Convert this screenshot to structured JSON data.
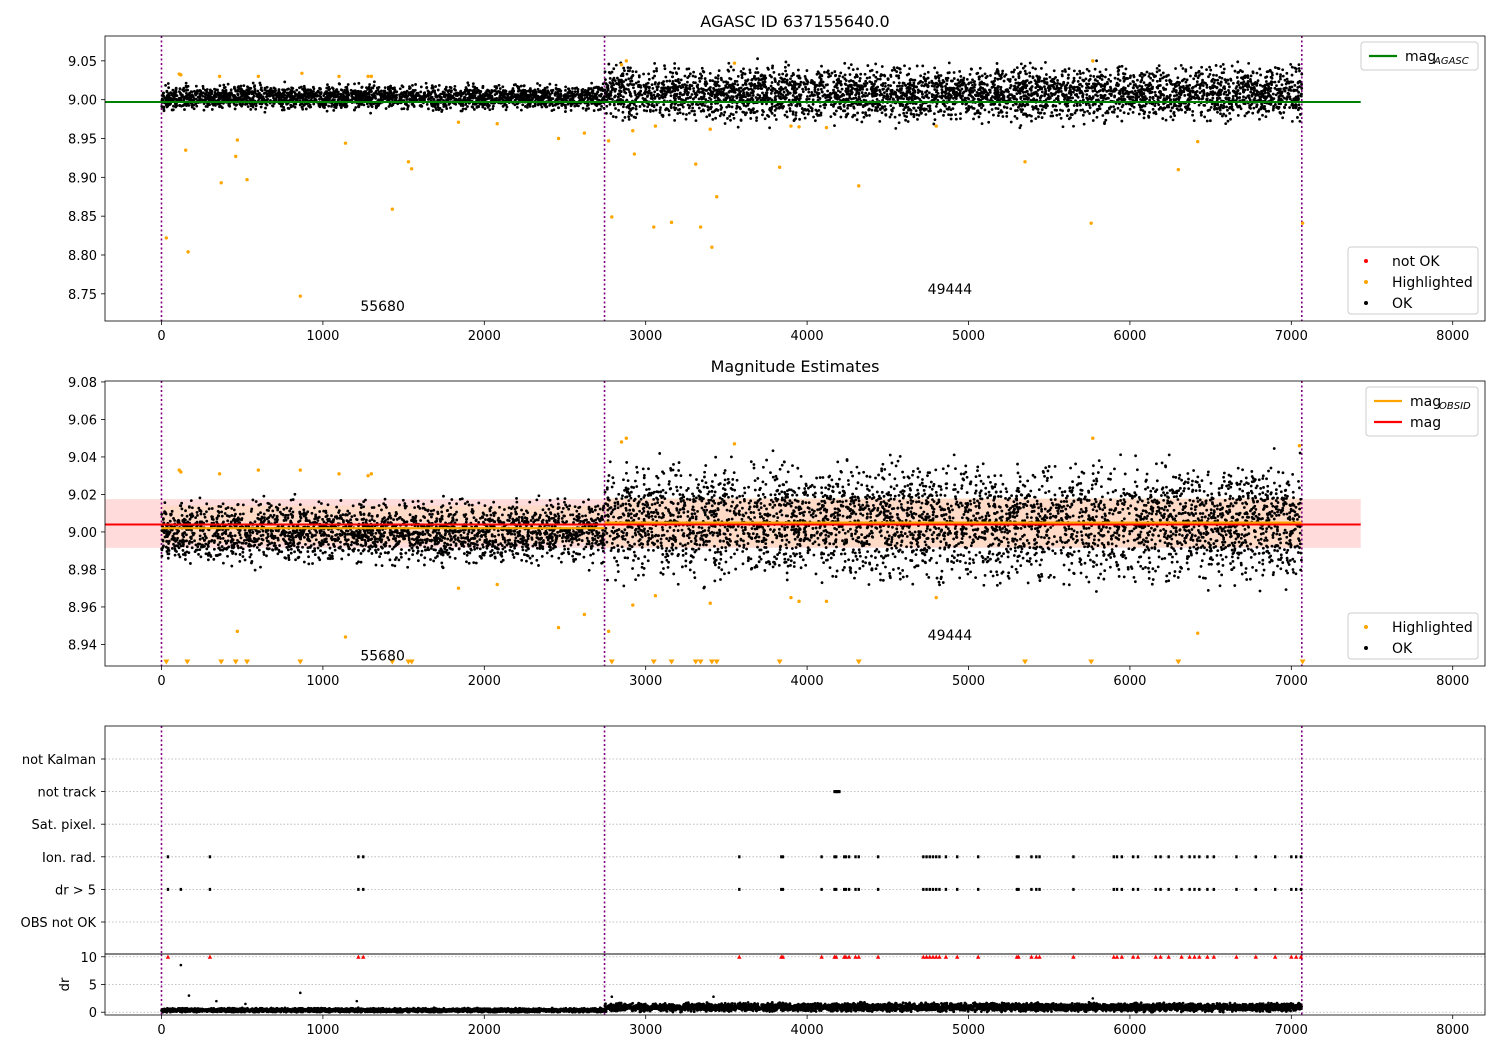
{
  "chart_data": [
    {
      "type": "scatter",
      "title": "AGASC ID 637155640.0",
      "xlabel": "",
      "ylabel": "",
      "xlim": [
        -350,
        8200
      ],
      "ylim": [
        8.715,
        9.082
      ],
      "xticks": [
        0,
        1000,
        2000,
        3000,
        4000,
        5000,
        6000,
        7000,
        8000
      ],
      "yticks": [
        8.75,
        8.8,
        8.85,
        8.9,
        8.95,
        9.0,
        9.05
      ],
      "grid": false,
      "vlines": [
        0,
        2745,
        7065
      ],
      "obsid_labels": [
        {
          "text": "55680",
          "x": 1370,
          "y": 8.734
        },
        {
          "text": "49444",
          "x": 4885,
          "y": 8.756
        }
      ],
      "lines": [
        {
          "name": "mag_{AGASC}",
          "color": "#008000",
          "y": 8.997,
          "x": [
            -350,
            7430
          ]
        }
      ],
      "legends": [
        {
          "placement": "top-right",
          "entries": [
            {
              "label_main": "mag",
              "label_sub": "AGASC",
              "color": "#008000",
              "marker": "line"
            }
          ]
        },
        {
          "placement": "bottom-right",
          "entries": [
            {
              "label": "not OK",
              "color": "#ff0000",
              "marker": "dot"
            },
            {
              "label": "Highlighted",
              "color": "#ffa500",
              "marker": "dot"
            },
            {
              "label": "OK",
              "color": "#000000",
              "marker": "dot"
            }
          ]
        }
      ],
      "series": [
        {
          "name": "OK",
          "color": "#000000",
          "segments": [
            {
              "x": [
                0,
                2745
              ],
              "center": 9.003,
              "spread": 0.011
            },
            {
              "x": [
                2745,
                7065
              ],
              "center": 9.008,
              "spread": 0.024
            }
          ]
        },
        {
          "name": "Highlighted",
          "color": "#ffa500",
          "x": [
            30,
            110,
            120,
            150,
            165,
            360,
            370,
            460,
            470,
            530,
            600,
            860,
            870,
            1100,
            1140,
            1280,
            1300,
            1430,
            1530,
            1550,
            1840,
            2080,
            2460,
            2620,
            2770,
            2790,
            2850,
            2880,
            2920,
            2930,
            3050,
            3060,
            3160,
            3310,
            3340,
            3400,
            3410,
            3440,
            3550,
            3830,
            3900,
            3950,
            4120,
            4320,
            4800,
            5350,
            5760,
            5770,
            6300,
            6420,
            7070
          ],
          "y": [
            8.822,
            9.033,
            9.032,
            8.935,
            8.804,
            9.03,
            8.893,
            8.927,
            8.948,
            8.897,
            9.03,
            8.747,
            9.034,
            9.03,
            8.944,
            9.03,
            9.03,
            8.859,
            8.92,
            8.911,
            8.971,
            8.969,
            8.95,
            8.957,
            8.947,
            8.849,
            9.045,
            9.05,
            8.96,
            8.93,
            8.836,
            8.966,
            8.842,
            8.917,
            8.836,
            8.962,
            8.81,
            8.875,
            9.047,
            8.913,
            8.966,
            8.965,
            8.964,
            8.889,
            8.966,
            8.92,
            8.841,
            9.05,
            8.91,
            8.946,
            8.841
          ]
        }
      ]
    },
    {
      "type": "scatter",
      "title": "Magnitude Estimates",
      "xlabel": "",
      "ylabel": "",
      "xlim": [
        -350,
        8200
      ],
      "ylim": [
        8.9285,
        9.0805
      ],
      "xticks": [
        0,
        1000,
        2000,
        3000,
        4000,
        5000,
        6000,
        7000,
        8000
      ],
      "yticks": [
        8.94,
        8.96,
        8.98,
        9.0,
        9.02,
        9.04,
        9.06,
        9.08
      ],
      "grid": false,
      "vlines": [
        0,
        2745,
        7065
      ],
      "obsid_labels": [
        {
          "text": "55680",
          "x": 1370,
          "y": 8.934
        },
        {
          "text": "49444",
          "x": 4885,
          "y": 8.945
        }
      ],
      "bands": [
        {
          "x": [
            -350,
            7430
          ],
          "y": [
            8.9915,
            9.0175
          ],
          "color": "#ffcccc"
        },
        {
          "x": [
            0,
            2745
          ],
          "y": [
            8.994,
            9.014
          ],
          "color": "#ffd9b3"
        },
        {
          "x": [
            2745,
            7065
          ],
          "y": [
            8.992,
            9.018
          ],
          "color": "#ffd9b3"
        }
      ],
      "lines": [
        {
          "name": "mag",
          "color": "#ff0000",
          "y": 9.004,
          "x": [
            -350,
            7430
          ]
        },
        {
          "name": "mag_{OBSID}",
          "color": "#ffa500",
          "segments": [
            {
              "x": [
                0,
                2745
              ],
              "y": 9.002
            },
            {
              "x": [
                2745,
                7065
              ],
              "y": 9.005
            }
          ]
        }
      ],
      "legends": [
        {
          "placement": "top-right",
          "entries": [
            {
              "label_main": "mag",
              "label_sub": "OBSID",
              "color": "#ffa500",
              "marker": "line"
            },
            {
              "label": "mag",
              "color": "#ff0000",
              "marker": "line"
            }
          ]
        },
        {
          "placement": "bottom-right",
          "entries": [
            {
              "label": "Highlighted",
              "color": "#ffa500",
              "marker": "dot"
            },
            {
              "label": "OK",
              "color": "#000000",
              "marker": "dot"
            }
          ]
        }
      ],
      "series": [
        {
          "name": "OK",
          "color": "#000000",
          "segments": [
            {
              "x": [
                0,
                2745
              ],
              "center": 9.0,
              "spread": 0.011
            },
            {
              "x": [
                2745,
                7065
              ],
              "center": 9.005,
              "spread": 0.021
            }
          ]
        },
        {
          "name": "Highlighted",
          "color": "#ffa500",
          "x": [
            110,
            120,
            360,
            470,
            600,
            860,
            1100,
            1140,
            1280,
            1300,
            1840,
            2080,
            2460,
            2620,
            2770,
            2850,
            2880,
            2920,
            3060,
            3400,
            3550,
            3900,
            3950,
            4120,
            4800,
            5770,
            6420,
            7050
          ],
          "y": [
            9.033,
            9.032,
            9.031,
            8.947,
            9.033,
            9.033,
            9.031,
            8.944,
            9.03,
            9.031,
            8.97,
            8.972,
            8.949,
            8.956,
            8.947,
            9.048,
            9.05,
            8.961,
            8.966,
            8.962,
            9.047,
            8.965,
            8.963,
            8.963,
            8.965,
            9.05,
            8.946,
            9.046
          ]
        },
        {
          "name": "Highlighted (below range)",
          "color": "#ffa500",
          "x": [
            30,
            160,
            370,
            460,
            530,
            860,
            1430,
            1530,
            1550,
            2790,
            3050,
            3160,
            3310,
            3340,
            3410,
            3440,
            3830,
            4320,
            5350,
            5760,
            6300,
            7070
          ],
          "y": [
            8.93,
            8.93,
            8.93,
            8.93,
            8.93,
            8.93,
            8.93,
            8.93,
            8.93,
            8.93,
            8.93,
            8.93,
            8.93,
            8.93,
            8.93,
            8.93,
            8.93,
            8.93,
            8.93,
            8.93,
            8.93,
            8.93
          ]
        }
      ]
    },
    {
      "type": "scatter",
      "title": "",
      "xlabel": "",
      "ylabel": "",
      "xlim": [
        -350,
        8200
      ],
      "categories": [
        "not Kalman",
        "not track",
        "Sat. pixel.",
        "Ion. rad.",
        "dr > 5",
        "OBS not OK"
      ],
      "grid": true,
      "vlines": [
        0,
        2745,
        7065
      ],
      "flags": [
        {
          "category": "not track",
          "x": [
            4170,
            4175,
            4180,
            4185,
            4190,
            4195,
            4200
          ]
        },
        {
          "category": "Ion. rad.",
          "x": [
            40,
            300,
            1220,
            1250,
            3580,
            3840,
            3850,
            4090,
            4170,
            4180,
            4230,
            4240,
            4260,
            4300,
            4320,
            4440,
            4720,
            4740,
            4760,
            4780,
            4800,
            4820,
            4860,
            4930,
            5060,
            5300,
            5310,
            5390,
            5420,
            5440,
            5650,
            5900,
            5920,
            5950,
            6020,
            6050,
            6160,
            6190,
            6240,
            6320,
            6370,
            6400,
            6430,
            6480,
            6520,
            6660,
            6780,
            6900,
            7000,
            7030,
            7060
          ]
        },
        {
          "category": "dr > 5",
          "x": [
            40,
            120,
            300,
            1220,
            1250,
            3580,
            3840,
            3850,
            4090,
            4170,
            4180,
            4230,
            4240,
            4260,
            4300,
            4320,
            4440,
            4720,
            4740,
            4760,
            4780,
            4800,
            4820,
            4860,
            4930,
            5060,
            5300,
            5310,
            5390,
            5420,
            5440,
            5650,
            5900,
            5920,
            5950,
            6020,
            6050,
            6160,
            6190,
            6240,
            6320,
            6370,
            6400,
            6430,
            6480,
            6520,
            6660,
            6780,
            6900,
            7000,
            7030,
            7060
          ]
        }
      ]
    },
    {
      "type": "scatter",
      "title": "",
      "xlabel": "",
      "ylabel": "dr",
      "xlim": [
        -350,
        8200
      ],
      "ylim": [
        -0.5,
        10.5
      ],
      "xticks": [
        0,
        1000,
        2000,
        3000,
        4000,
        5000,
        6000,
        7000,
        8000
      ],
      "yticks": [
        0,
        5,
        10
      ],
      "grid": true,
      "vlines": [
        0,
        2745,
        7065
      ],
      "series": [
        {
          "name": "OK",
          "color": "#000000",
          "segments": [
            {
              "x": [
                0,
                2745
              ],
              "center": 0.35,
              "spread": 0.25
            },
            {
              "x": [
                2745,
                7065
              ],
              "center": 0.9,
              "spread": 0.5
            }
          ],
          "x": [
            120,
            170,
            340,
            520,
            860,
            1210,
            2790,
            3420,
            5770
          ],
          "y": [
            8.5,
            3,
            2,
            1.5,
            3.5,
            2,
            2.8,
            2.8,
            2.5
          ]
        },
        {
          "name": "not OK",
          "color": "#ff0000",
          "x": [
            40,
            300,
            1220,
            1250,
            3580,
            3840,
            3850,
            4090,
            4170,
            4180,
            4230,
            4240,
            4260,
            4300,
            4320,
            4440,
            4720,
            4740,
            4760,
            4780,
            4800,
            4820,
            4860,
            4930,
            5060,
            5300,
            5310,
            5390,
            5420,
            5440,
            5650,
            5900,
            5920,
            5950,
            6020,
            6050,
            6160,
            6190,
            6240,
            6320,
            6370,
            6400,
            6430,
            6480,
            6520,
            6660,
            6780,
            6900,
            7000,
            7030,
            7060
          ],
          "y": [
            10,
            10,
            10,
            10,
            10,
            10,
            10,
            10,
            10,
            10,
            10,
            10,
            10,
            10,
            10,
            10,
            10,
            10,
            10,
            10,
            10,
            10,
            10,
            10,
            10,
            10,
            10,
            10,
            10,
            10,
            10,
            10,
            10,
            10,
            10,
            10,
            10,
            10,
            10,
            10,
            10,
            10,
            10,
            10,
            10,
            10,
            10,
            10,
            10,
            10,
            10
          ]
        }
      ]
    }
  ]
}
